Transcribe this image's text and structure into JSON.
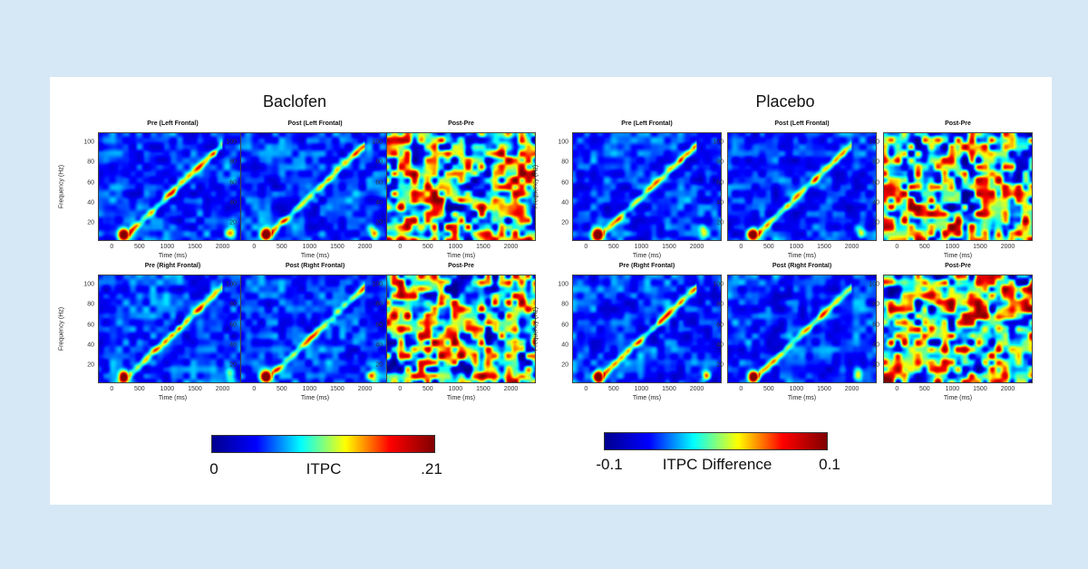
{
  "groups": [
    {
      "title": "Baclofen"
    },
    {
      "title": "Placebo"
    }
  ],
  "colors": {
    "background": "#d6e7f5",
    "colormap": [
      "#00008f",
      "#0000ff",
      "#00ffff",
      "#ffff00",
      "#ff0000",
      "#800000"
    ]
  },
  "axes": {
    "xlabel": "Time (ms)",
    "ylabel": "Frequency (Hz)",
    "xticks": [
      "0",
      "500",
      "1000",
      "1500",
      "2000"
    ],
    "yticks": [
      "20",
      "40",
      "60",
      "80",
      "100"
    ]
  },
  "chart_data": [
    {
      "type": "heatmap",
      "group": "Baclofen",
      "title": "Pre (Left Frontal)",
      "kind": "itpc",
      "ylabel_shown": true,
      "xlim": [
        -250,
        2450
      ],
      "ylim": [
        2,
        110
      ],
      "clim": [
        0,
        0.21
      ]
    },
    {
      "type": "heatmap",
      "group": "Baclofen",
      "title": "Post (Left Frontal)",
      "kind": "itpc",
      "ylabel_shown": false,
      "xlim": [
        -250,
        2450
      ],
      "ylim": [
        2,
        110
      ],
      "clim": [
        0,
        0.21
      ]
    },
    {
      "type": "heatmap",
      "group": "Baclofen",
      "title": "Post-Pre",
      "kind": "diff",
      "ylabel_shown": false,
      "xlim": [
        -250,
        2450
      ],
      "ylim": [
        2,
        110
      ],
      "clim": [
        -0.1,
        0.1
      ]
    },
    {
      "type": "heatmap",
      "group": "Placebo",
      "title": "Pre (Left Frontal)",
      "kind": "itpc",
      "ylabel_shown": true,
      "xlim": [
        -250,
        2450
      ],
      "ylim": [
        2,
        110
      ],
      "clim": [
        0,
        0.21
      ]
    },
    {
      "type": "heatmap",
      "group": "Placebo",
      "title": "Post (Left Frontal)",
      "kind": "itpc",
      "ylabel_shown": false,
      "xlim": [
        -250,
        2450
      ],
      "ylim": [
        2,
        110
      ],
      "clim": [
        0,
        0.21
      ]
    },
    {
      "type": "heatmap",
      "group": "Placebo",
      "title": "Post-Pre",
      "kind": "diff",
      "ylabel_shown": false,
      "xlim": [
        -250,
        2450
      ],
      "ylim": [
        2,
        110
      ],
      "clim": [
        -0.1,
        0.1
      ]
    },
    {
      "type": "heatmap",
      "group": "Baclofen",
      "title": "Pre (Right Frontal)",
      "kind": "itpc",
      "ylabel_shown": true,
      "xlim": [
        -250,
        2450
      ],
      "ylim": [
        2,
        110
      ],
      "clim": [
        0,
        0.21
      ]
    },
    {
      "type": "heatmap",
      "group": "Baclofen",
      "title": "Post (Right Frontal)",
      "kind": "itpc",
      "ylabel_shown": false,
      "xlim": [
        -250,
        2450
      ],
      "ylim": [
        2,
        110
      ],
      "clim": [
        0,
        0.21
      ]
    },
    {
      "type": "heatmap",
      "group": "Baclofen",
      "title": "Post-Pre",
      "kind": "diff",
      "ylabel_shown": false,
      "xlim": [
        -250,
        2450
      ],
      "ylim": [
        2,
        110
      ],
      "clim": [
        -0.1,
        0.1
      ]
    },
    {
      "type": "heatmap",
      "group": "Placebo",
      "title": "Pre (Right Frontal)",
      "kind": "itpc",
      "ylabel_shown": true,
      "xlim": [
        -250,
        2450
      ],
      "ylim": [
        2,
        110
      ],
      "clim": [
        0,
        0.21
      ]
    },
    {
      "type": "heatmap",
      "group": "Placebo",
      "title": "Post (Right Frontal)",
      "kind": "itpc",
      "ylabel_shown": false,
      "xlim": [
        -250,
        2450
      ],
      "ylim": [
        2,
        110
      ],
      "clim": [
        0,
        0.21
      ]
    },
    {
      "type": "heatmap",
      "group": "Placebo",
      "title": "Post-Pre",
      "kind": "diff",
      "ylabel_shown": false,
      "xlim": [
        -250,
        2450
      ],
      "ylim": [
        2,
        110
      ],
      "clim": [
        -0.1,
        0.1
      ]
    }
  ],
  "colorbars": [
    {
      "label": "ITPC",
      "min": "0",
      "max": ".21"
    },
    {
      "label": "ITPC Difference",
      "min": "-0.1",
      "max": "0.1"
    }
  ]
}
